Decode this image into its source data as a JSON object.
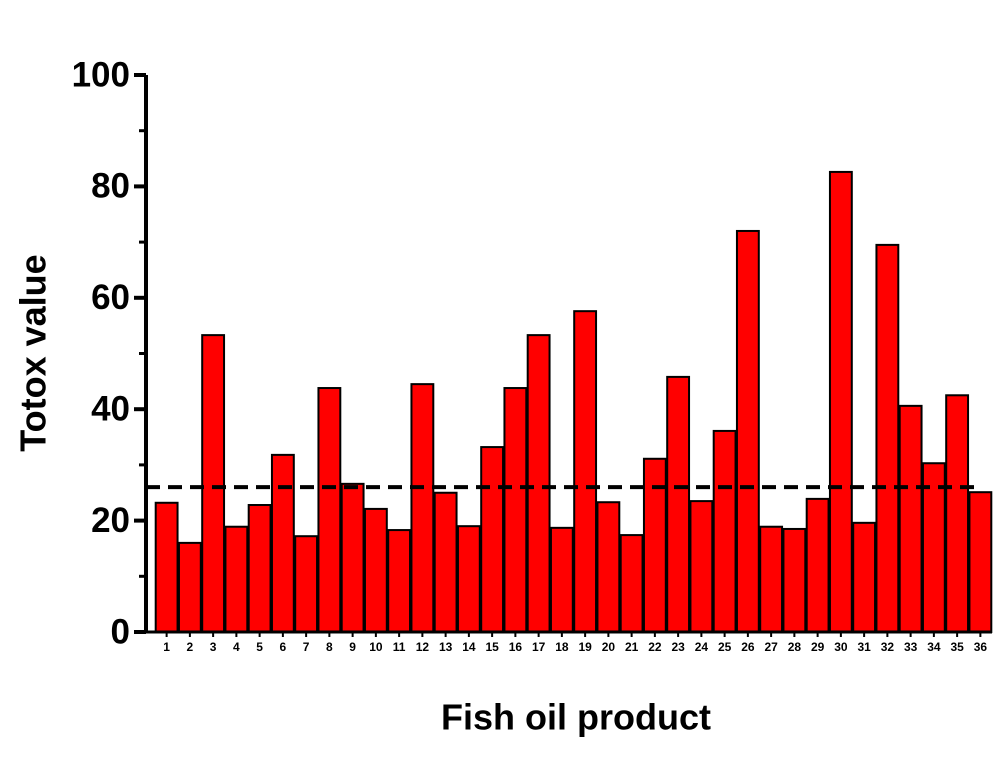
{
  "chart_data": {
    "type": "bar",
    "x_label": "Fish oil product",
    "y_label": "Totox value",
    "categories": [
      "1",
      "2",
      "3",
      "4",
      "5",
      "6",
      "7",
      "8",
      "9",
      "10",
      "11",
      "12",
      "13",
      "14",
      "15",
      "16",
      "17",
      "18",
      "19",
      "20",
      "21",
      "22",
      "23",
      "24",
      "25",
      "26",
      "27",
      "28",
      "29",
      "30",
      "31",
      "32",
      "33",
      "34",
      "35",
      "36"
    ],
    "values": [
      23.2,
      16.0,
      53.3,
      18.9,
      22.8,
      31.8,
      17.2,
      43.8,
      26.6,
      22.1,
      18.3,
      44.5,
      25.0,
      19.0,
      33.2,
      43.8,
      53.3,
      18.7,
      57.6,
      23.3,
      17.4,
      31.1,
      45.8,
      23.5,
      36.1,
      72.0,
      18.9,
      18.5,
      23.9,
      82.6,
      19.6,
      69.5,
      40.6,
      30.3,
      42.5,
      25.1
    ],
    "color": "#ff0000",
    "reference_line": 26.0,
    "ylim": [
      0,
      100
    ],
    "yticks": [
      0,
      20,
      40,
      60,
      80,
      100
    ],
    "yminor": [
      10,
      30,
      50,
      70,
      90
    ],
    "grid": false
  }
}
